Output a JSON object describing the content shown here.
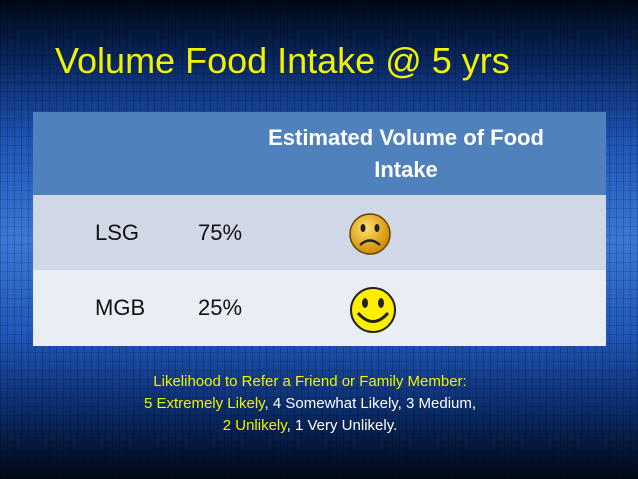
{
  "header": {
    "title": "Volume Food Intake @ 5 yrs"
  },
  "table": {
    "columns": [
      "Estimated Volume of Food Intake"
    ],
    "rows": [
      [
        "LSG",
        "75%"
      ],
      [
        "MGB",
        "25%"
      ]
    ]
  },
  "footer": {
    "lines": [
      [
        "Likelihood to Refer a Friend or Family Member:"
      ],
      [
        "5 Extremely Likely",
        ", 4 Somewhat Likely, 3 Medium,"
      ],
      [
        "2 Unlikely",
        ", 1 Very Unlikely."
      ]
    ]
  }
}
